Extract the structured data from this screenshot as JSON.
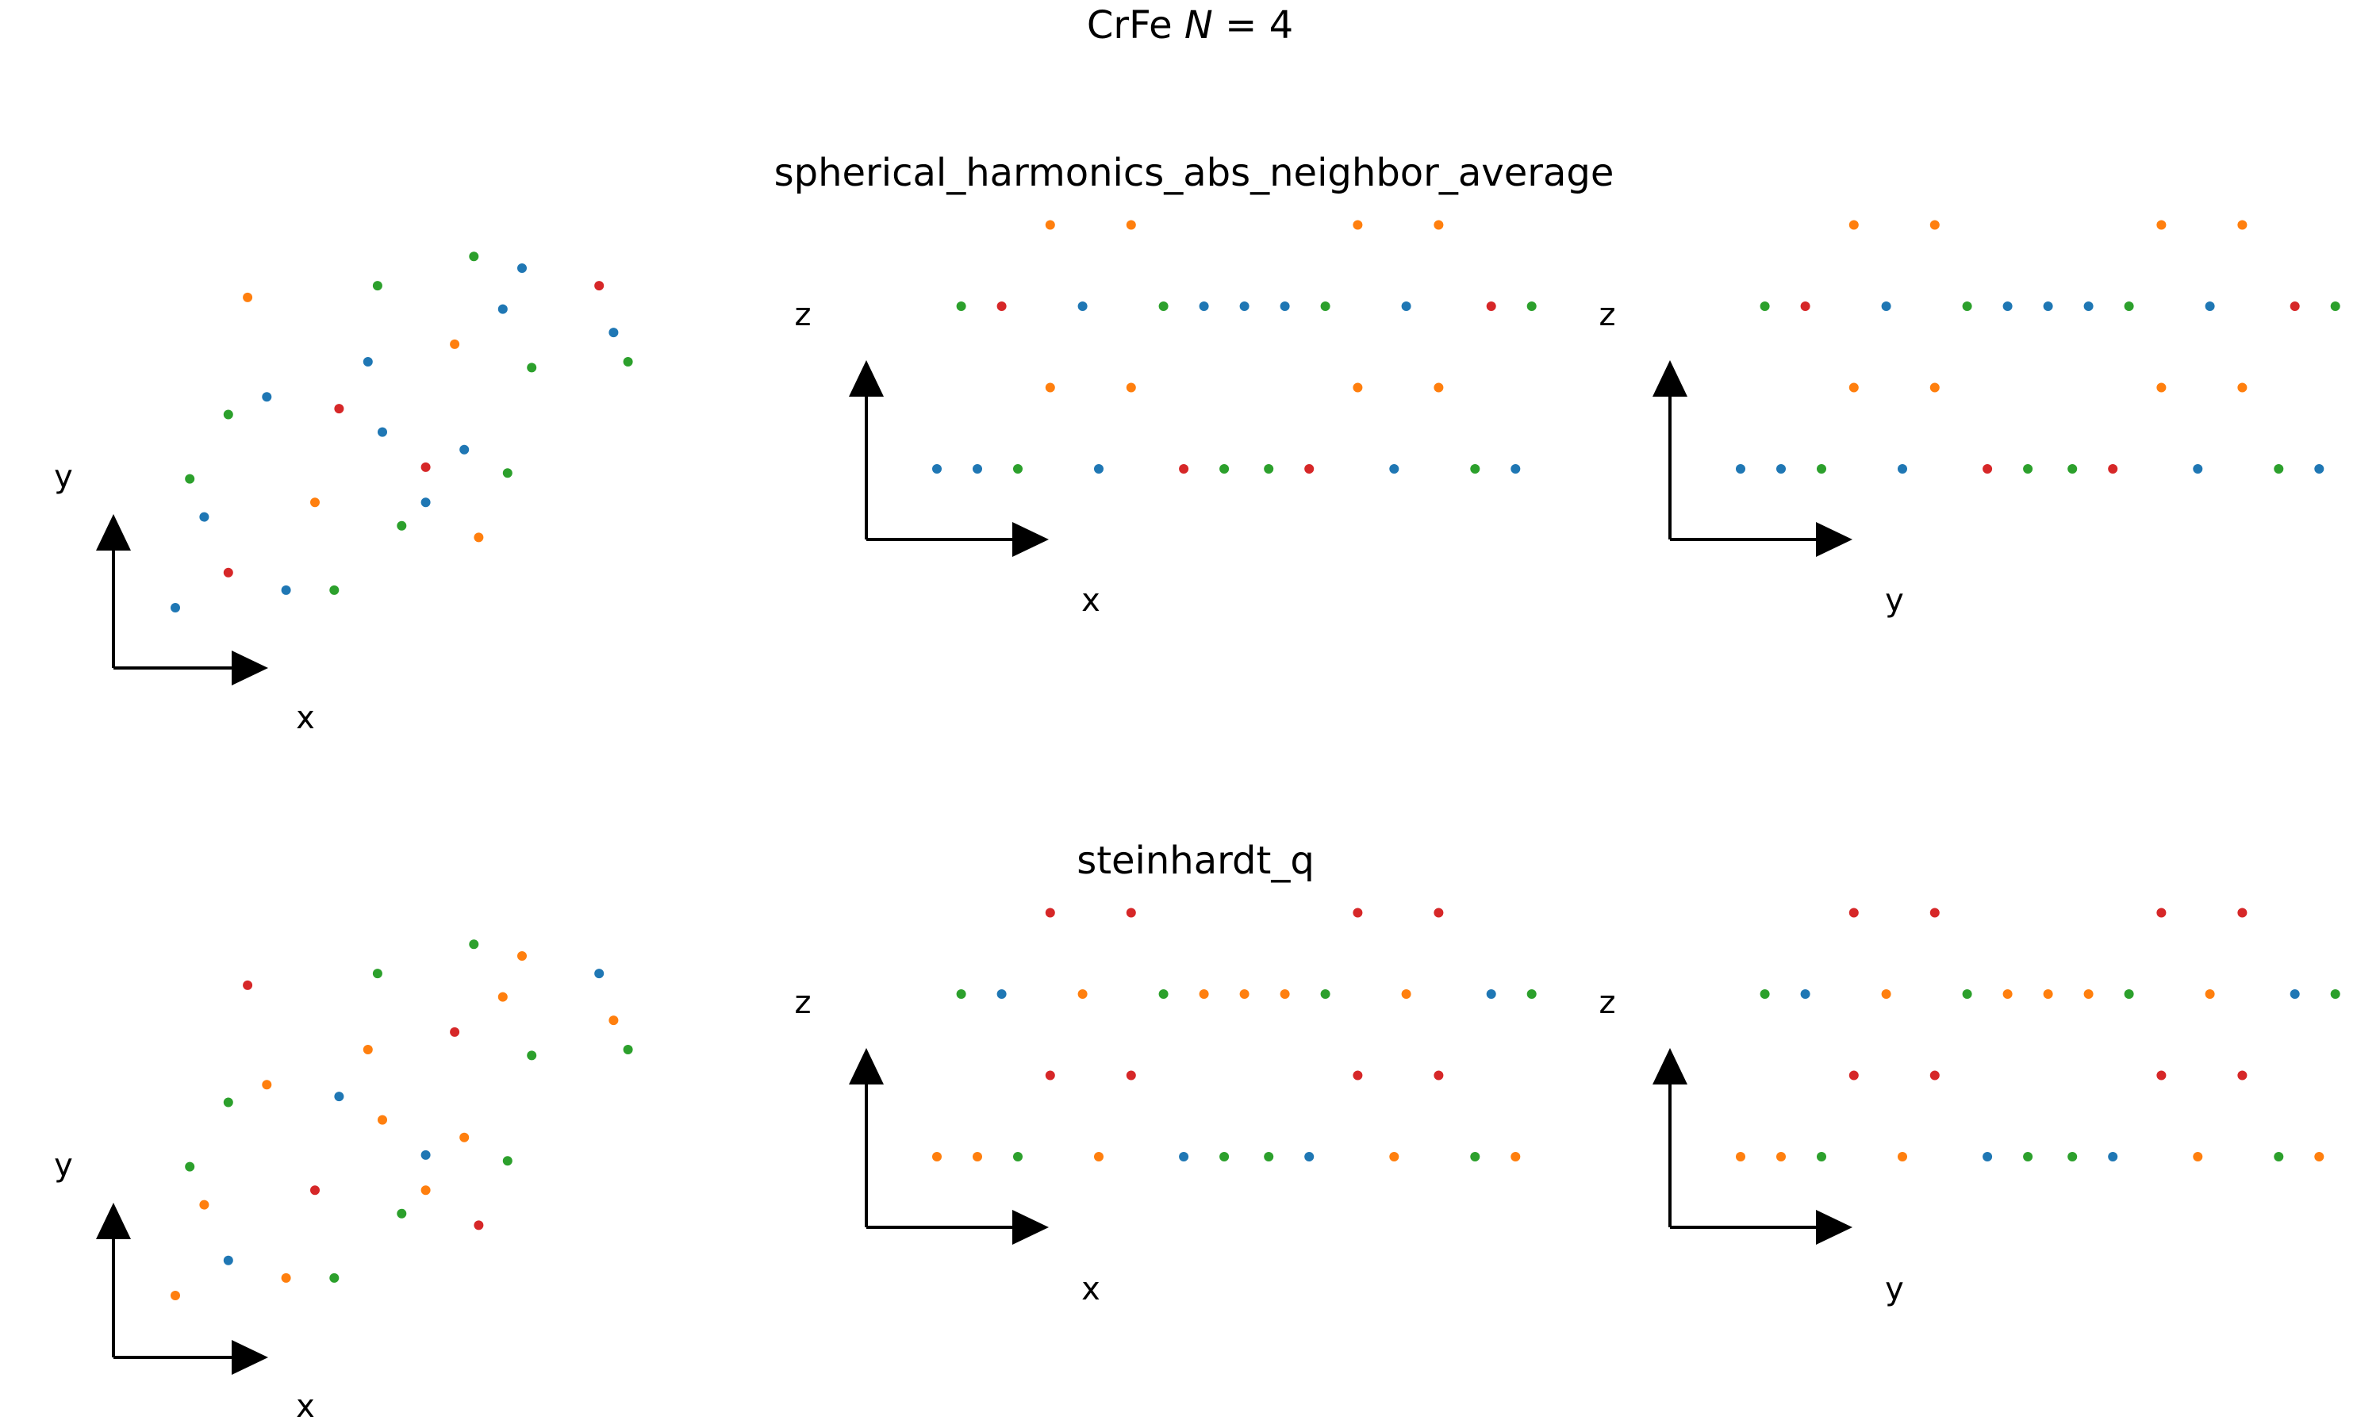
{
  "figure": {
    "title_prefix": "CrFe ",
    "title_var": "N",
    "title_suffix": " = 4",
    "rows": [
      {
        "title": "spherical_harmonics_abs_neighbor_average"
      },
      {
        "title": "steinhardt_q"
      }
    ],
    "axis_labels": {
      "xy": {
        "horizontal": "x",
        "vertical": "y"
      },
      "xz": {
        "horizontal": "x",
        "vertical": "z"
      },
      "yz": {
        "horizontal": "y",
        "vertical": "z"
      }
    }
  },
  "colors": {
    "blue": "#1f77b4",
    "orange": "#ff7f0e",
    "green": "#2ca02c",
    "red": "#d62728"
  },
  "chart_data": [
    {
      "type": "scatter",
      "title": "spherical_harmonics_abs_neighbor_average",
      "note": "atomic positions (arbitrary units) projected onto three planes; marker color = cluster label",
      "points_xy": [
        [
          0.0,
          0.0,
          "blue"
        ],
        [
          1.1,
          0.6,
          "red"
        ],
        [
          2.3,
          0.3,
          "blue"
        ],
        [
          3.3,
          0.3,
          "green"
        ],
        [
          0.6,
          1.55,
          "blue"
        ],
        [
          2.9,
          1.8,
          "orange"
        ],
        [
          4.7,
          1.4,
          "green"
        ],
        [
          5.2,
          1.8,
          "blue"
        ],
        [
          0.3,
          2.2,
          "green"
        ],
        [
          1.1,
          3.3,
          "green"
        ],
        [
          1.9,
          3.6,
          "blue"
        ],
        [
          3.4,
          3.4,
          "red"
        ],
        [
          4.3,
          3.0,
          "blue"
        ],
        [
          5.2,
          2.4,
          "red"
        ],
        [
          6.3,
          1.2,
          "orange"
        ],
        [
          6.9,
          2.3,
          "green"
        ],
        [
          6.0,
          2.7,
          "blue"
        ],
        [
          1.5,
          5.3,
          "orange"
        ],
        [
          4.0,
          4.2,
          "blue"
        ],
        [
          4.2,
          5.5,
          "green"
        ],
        [
          5.8,
          4.5,
          "orange"
        ],
        [
          7.4,
          4.1,
          "green"
        ],
        [
          6.8,
          5.1,
          "blue"
        ],
        [
          6.2,
          6.0,
          "green"
        ],
        [
          7.2,
          5.8,
          "blue"
        ],
        [
          8.8,
          5.5,
          "red"
        ],
        [
          9.1,
          4.7,
          "blue"
        ],
        [
          9.4,
          4.2,
          "green"
        ]
      ],
      "points_xz": [
        [
          0.0,
          0.0,
          "blue"
        ],
        [
          0.5,
          0.0,
          "blue"
        ],
        [
          1.0,
          0.0,
          "green"
        ],
        [
          2.0,
          0.0,
          "blue"
        ],
        [
          3.05,
          0.0,
          "red"
        ],
        [
          3.55,
          0.0,
          "green"
        ],
        [
          4.1,
          0.0,
          "green"
        ],
        [
          4.6,
          0.0,
          "red"
        ],
        [
          5.65,
          0.0,
          "blue"
        ],
        [
          6.65,
          0.0,
          "green"
        ],
        [
          7.15,
          0.0,
          "blue"
        ],
        [
          1.4,
          1.0,
          "orange"
        ],
        [
          2.4,
          1.0,
          "orange"
        ],
        [
          5.2,
          1.0,
          "orange"
        ],
        [
          6.2,
          1.0,
          "orange"
        ],
        [
          0.3,
          2.0,
          "green"
        ],
        [
          0.8,
          2.0,
          "red"
        ],
        [
          1.8,
          2.0,
          "blue"
        ],
        [
          2.8,
          2.0,
          "green"
        ],
        [
          3.3,
          2.0,
          "blue"
        ],
        [
          3.8,
          2.0,
          "blue"
        ],
        [
          4.3,
          2.0,
          "blue"
        ],
        [
          4.8,
          2.0,
          "green"
        ],
        [
          5.8,
          2.0,
          "blue"
        ],
        [
          6.85,
          2.0,
          "red"
        ],
        [
          7.35,
          2.0,
          "green"
        ],
        [
          1.4,
          3.0,
          "orange"
        ],
        [
          2.4,
          3.0,
          "orange"
        ],
        [
          5.2,
          3.0,
          "orange"
        ],
        [
          6.2,
          3.0,
          "orange"
        ]
      ],
      "points_yz": [
        [
          0.0,
          0.0,
          "blue"
        ],
        [
          0.5,
          0.0,
          "blue"
        ],
        [
          1.0,
          0.0,
          "green"
        ],
        [
          2.0,
          0.0,
          "blue"
        ],
        [
          3.05,
          0.0,
          "red"
        ],
        [
          3.55,
          0.0,
          "green"
        ],
        [
          4.1,
          0.0,
          "green"
        ],
        [
          4.6,
          0.0,
          "red"
        ],
        [
          5.65,
          0.0,
          "blue"
        ],
        [
          6.65,
          0.0,
          "green"
        ],
        [
          7.15,
          0.0,
          "blue"
        ],
        [
          1.4,
          1.0,
          "orange"
        ],
        [
          2.4,
          1.0,
          "orange"
        ],
        [
          5.2,
          1.0,
          "orange"
        ],
        [
          6.2,
          1.0,
          "orange"
        ],
        [
          0.3,
          2.0,
          "green"
        ],
        [
          0.8,
          2.0,
          "red"
        ],
        [
          1.8,
          2.0,
          "blue"
        ],
        [
          2.8,
          2.0,
          "green"
        ],
        [
          3.3,
          2.0,
          "blue"
        ],
        [
          3.8,
          2.0,
          "blue"
        ],
        [
          4.3,
          2.0,
          "blue"
        ],
        [
          4.8,
          2.0,
          "green"
        ],
        [
          5.8,
          2.0,
          "blue"
        ],
        [
          6.85,
          2.0,
          "red"
        ],
        [
          7.35,
          2.0,
          "green"
        ],
        [
          1.4,
          3.0,
          "orange"
        ],
        [
          2.4,
          3.0,
          "orange"
        ],
        [
          5.2,
          3.0,
          "orange"
        ],
        [
          6.2,
          3.0,
          "orange"
        ]
      ]
    },
    {
      "type": "scatter",
      "title": "steinhardt_q",
      "note": "same atomic positions, recolored by steinhardt_q cluster label",
      "points_xy": [
        [
          0.0,
          0.0,
          "orange"
        ],
        [
          1.1,
          0.6,
          "blue"
        ],
        [
          2.3,
          0.3,
          "orange"
        ],
        [
          3.3,
          0.3,
          "green"
        ],
        [
          0.6,
          1.55,
          "orange"
        ],
        [
          2.9,
          1.8,
          "red"
        ],
        [
          4.7,
          1.4,
          "green"
        ],
        [
          5.2,
          1.8,
          "orange"
        ],
        [
          0.3,
          2.2,
          "green"
        ],
        [
          1.1,
          3.3,
          "green"
        ],
        [
          1.9,
          3.6,
          "orange"
        ],
        [
          3.4,
          3.4,
          "blue"
        ],
        [
          4.3,
          3.0,
          "orange"
        ],
        [
          5.2,
          2.4,
          "blue"
        ],
        [
          6.3,
          1.2,
          "red"
        ],
        [
          6.9,
          2.3,
          "green"
        ],
        [
          6.0,
          2.7,
          "orange"
        ],
        [
          1.5,
          5.3,
          "red"
        ],
        [
          4.0,
          4.2,
          "orange"
        ],
        [
          4.2,
          5.5,
          "green"
        ],
        [
          5.8,
          4.5,
          "red"
        ],
        [
          7.4,
          4.1,
          "green"
        ],
        [
          6.8,
          5.1,
          "orange"
        ],
        [
          6.2,
          6.0,
          "green"
        ],
        [
          7.2,
          5.8,
          "orange"
        ],
        [
          8.8,
          5.5,
          "blue"
        ],
        [
          9.1,
          4.7,
          "orange"
        ],
        [
          9.4,
          4.2,
          "green"
        ]
      ],
      "points_xz": [
        [
          0.0,
          0.0,
          "orange"
        ],
        [
          0.5,
          0.0,
          "orange"
        ],
        [
          1.0,
          0.0,
          "green"
        ],
        [
          2.0,
          0.0,
          "orange"
        ],
        [
          3.05,
          0.0,
          "blue"
        ],
        [
          3.55,
          0.0,
          "green"
        ],
        [
          4.1,
          0.0,
          "green"
        ],
        [
          4.6,
          0.0,
          "blue"
        ],
        [
          5.65,
          0.0,
          "orange"
        ],
        [
          6.65,
          0.0,
          "green"
        ],
        [
          7.15,
          0.0,
          "orange"
        ],
        [
          1.4,
          1.0,
          "red"
        ],
        [
          2.4,
          1.0,
          "red"
        ],
        [
          5.2,
          1.0,
          "red"
        ],
        [
          6.2,
          1.0,
          "red"
        ],
        [
          0.3,
          2.0,
          "green"
        ],
        [
          0.8,
          2.0,
          "blue"
        ],
        [
          1.8,
          2.0,
          "orange"
        ],
        [
          2.8,
          2.0,
          "green"
        ],
        [
          3.3,
          2.0,
          "orange"
        ],
        [
          3.8,
          2.0,
          "orange"
        ],
        [
          4.3,
          2.0,
          "orange"
        ],
        [
          4.8,
          2.0,
          "green"
        ],
        [
          5.8,
          2.0,
          "orange"
        ],
        [
          6.85,
          2.0,
          "blue"
        ],
        [
          7.35,
          2.0,
          "green"
        ],
        [
          1.4,
          3.0,
          "red"
        ],
        [
          2.4,
          3.0,
          "red"
        ],
        [
          5.2,
          3.0,
          "red"
        ],
        [
          6.2,
          3.0,
          "red"
        ]
      ],
      "points_yz": [
        [
          0.0,
          0.0,
          "orange"
        ],
        [
          0.5,
          0.0,
          "orange"
        ],
        [
          1.0,
          0.0,
          "green"
        ],
        [
          2.0,
          0.0,
          "orange"
        ],
        [
          3.05,
          0.0,
          "blue"
        ],
        [
          3.55,
          0.0,
          "green"
        ],
        [
          4.1,
          0.0,
          "green"
        ],
        [
          4.6,
          0.0,
          "blue"
        ],
        [
          5.65,
          0.0,
          "orange"
        ],
        [
          6.65,
          0.0,
          "green"
        ],
        [
          7.15,
          0.0,
          "orange"
        ],
        [
          1.4,
          1.0,
          "red"
        ],
        [
          2.4,
          1.0,
          "red"
        ],
        [
          5.2,
          1.0,
          "red"
        ],
        [
          6.2,
          1.0,
          "red"
        ],
        [
          0.3,
          2.0,
          "green"
        ],
        [
          0.8,
          2.0,
          "blue"
        ],
        [
          1.8,
          2.0,
          "orange"
        ],
        [
          2.8,
          2.0,
          "green"
        ],
        [
          3.3,
          2.0,
          "orange"
        ],
        [
          3.8,
          2.0,
          "orange"
        ],
        [
          4.3,
          2.0,
          "orange"
        ],
        [
          4.8,
          2.0,
          "green"
        ],
        [
          5.8,
          2.0,
          "orange"
        ],
        [
          6.85,
          2.0,
          "blue"
        ],
        [
          7.35,
          2.0,
          "green"
        ],
        [
          1.4,
          3.0,
          "red"
        ],
        [
          2.4,
          3.0,
          "red"
        ],
        [
          5.2,
          3.0,
          "red"
        ],
        [
          6.2,
          3.0,
          "red"
        ]
      ]
    }
  ]
}
